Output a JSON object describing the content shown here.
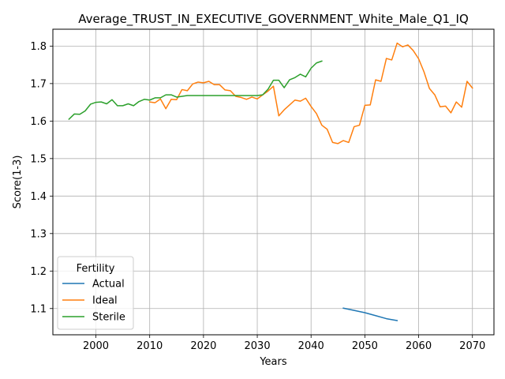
{
  "chart_data": {
    "type": "line",
    "title": "Average_TRUST_IN_EXECUTIVE_GOVERNMENT_White_Male_Q1_IQ",
    "xlabel": "Years",
    "ylabel": "Score(1-3)",
    "xlim": [
      1992,
      2074
    ],
    "ylim": [
      1.03,
      1.845
    ],
    "xticks": [
      2000,
      2010,
      2020,
      2030,
      2040,
      2050,
      2060,
      2070
    ],
    "yticks": [
      1.1,
      1.2,
      1.3,
      1.4,
      1.5,
      1.6,
      1.7,
      1.8
    ],
    "grid": true,
    "legend": {
      "title": "Fertility",
      "placement": "lower-left"
    },
    "series": [
      {
        "name": "Actual",
        "color": "#1f77b4",
        "x": [
          2046,
          2048,
          2050,
          2052,
          2054,
          2056
        ],
        "y": [
          1.101,
          1.095,
          1.089,
          1.081,
          1.073,
          1.068
        ]
      },
      {
        "name": "Ideal",
        "color": "#ff7f0e",
        "x": [
          2010,
          2011,
          2012,
          2013,
          2014,
          2015,
          2016,
          2017,
          2018,
          2019,
          2020,
          2021,
          2022,
          2023,
          2024,
          2025,
          2026,
          2027,
          2028,
          2029,
          2030,
          2031,
          2032,
          2033,
          2034,
          2035,
          2036,
          2037,
          2038,
          2039,
          2040,
          2041,
          2042,
          2043,
          2044,
          2045,
          2046,
          2047,
          2048,
          2049,
          2050,
          2051,
          2052,
          2053,
          2054,
          2055,
          2056,
          2057,
          2058,
          2059,
          2060,
          2061,
          2062,
          2063,
          2064,
          2065,
          2066,
          2067,
          2068,
          2069,
          2070
        ],
        "y": [
          1.651,
          1.649,
          1.659,
          1.633,
          1.658,
          1.657,
          1.684,
          1.681,
          1.699,
          1.704,
          1.702,
          1.706,
          1.697,
          1.697,
          1.683,
          1.681,
          1.666,
          1.663,
          1.658,
          1.664,
          1.659,
          1.67,
          1.68,
          1.693,
          1.614,
          1.63,
          1.643,
          1.656,
          1.653,
          1.661,
          1.639,
          1.62,
          1.589,
          1.578,
          1.543,
          1.54,
          1.548,
          1.543,
          1.585,
          1.589,
          1.642,
          1.643,
          1.71,
          1.706,
          1.767,
          1.763,
          1.808,
          1.798,
          1.803,
          1.788,
          1.766,
          1.731,
          1.687,
          1.67,
          1.638,
          1.64,
          1.622,
          1.651,
          1.637,
          1.706,
          1.688
        ]
      },
      {
        "name": "Sterile",
        "color": "#2ca02c",
        "x": [
          1995,
          1996,
          1997,
          1998,
          1999,
          2000,
          2001,
          2002,
          2003,
          2004,
          2005,
          2006,
          2007,
          2008,
          2009,
          2010,
          2011,
          2012,
          2013,
          2014,
          2015,
          2016,
          2017,
          2018,
          2019,
          2020,
          2021,
          2022,
          2023,
          2024,
          2025,
          2026,
          2027,
          2028,
          2029,
          2030,
          2031,
          2032,
          2033,
          2034,
          2035,
          2036,
          2037,
          2038,
          2039,
          2040,
          2041,
          2042
        ],
        "y": [
          1.605,
          1.619,
          1.618,
          1.627,
          1.645,
          1.65,
          1.651,
          1.646,
          1.657,
          1.641,
          1.641,
          1.646,
          1.641,
          1.652,
          1.658,
          1.656,
          1.662,
          1.662,
          1.67,
          1.67,
          1.664,
          1.666,
          1.668,
          1.668,
          1.668,
          1.668,
          1.668,
          1.668,
          1.668,
          1.668,
          1.668,
          1.668,
          1.668,
          1.668,
          1.668,
          1.668,
          1.67,
          1.685,
          1.709,
          1.709,
          1.689,
          1.71,
          1.716,
          1.725,
          1.718,
          1.741,
          1.755,
          1.76
        ]
      }
    ]
  }
}
